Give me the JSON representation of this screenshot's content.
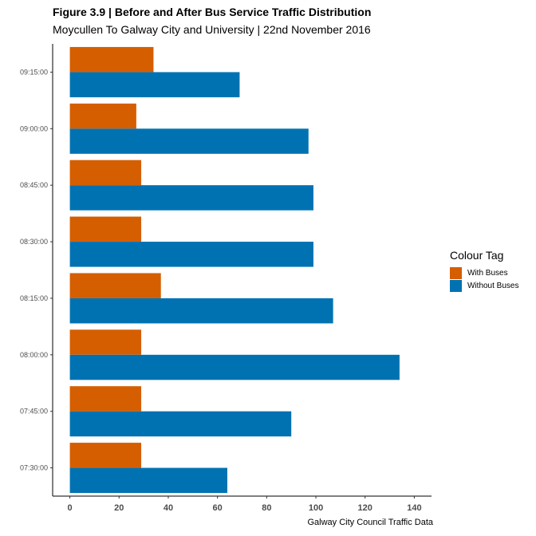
{
  "chart_data": {
    "type": "bar",
    "orientation": "horizontal",
    "title": "Figure 3.9 | Before and After Bus Service Traffic Distribution",
    "subtitle": "Moycullen To Galway City and University | 22nd November 2016",
    "caption": "Galway City Council Traffic Data",
    "categories": [
      "07:30:00",
      "07:45:00",
      "08:00:00",
      "08:15:00",
      "08:30:00",
      "08:45:00",
      "09:00:00",
      "09:15:00"
    ],
    "series": [
      {
        "name": "With Buses",
        "color": "#D55E00",
        "values": [
          29,
          29,
          29,
          37,
          29,
          29,
          27,
          34
        ]
      },
      {
        "name": "Without Buses",
        "color": "#0072B2",
        "values": [
          64,
          90,
          134,
          107,
          99,
          99,
          97,
          69
        ]
      }
    ],
    "xlim": [
      -7,
      147
    ],
    "xticks": [
      "0",
      "20",
      "40",
      "60",
      "80",
      "100",
      "120",
      "140"
    ],
    "legend": {
      "title": "Colour Tag",
      "position": "right"
    },
    "grid": false
  }
}
